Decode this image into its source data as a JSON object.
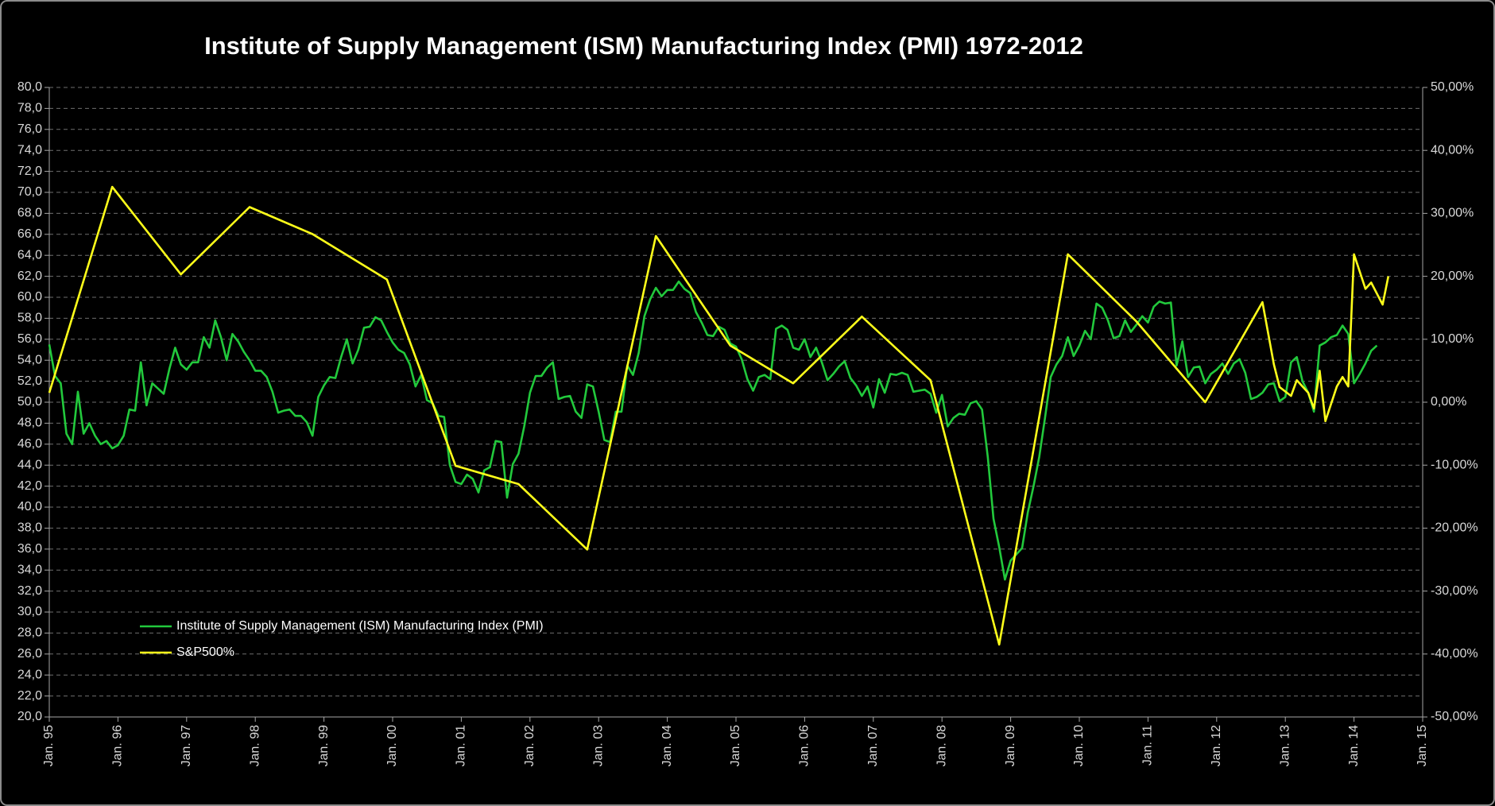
{
  "chart_data": {
    "type": "line",
    "title": "Institute of Supply Management (ISM) Manufacturing Index (PMI) 1972-2012",
    "xlim": [
      "1995-01",
      "2015-01"
    ],
    "xticks": [
      {
        "value": "1995-01",
        "label": "Jan. 95"
      },
      {
        "value": "1996-01",
        "label": "Jan. 96"
      },
      {
        "value": "1997-01",
        "label": "Jan. 97"
      },
      {
        "value": "1998-01",
        "label": "Jan. 98"
      },
      {
        "value": "1999-01",
        "label": "Jan. 99"
      },
      {
        "value": "2000-01",
        "label": "Jan. 00"
      },
      {
        "value": "2001-01",
        "label": "Jan. 01"
      },
      {
        "value": "2002-01",
        "label": "Jan. 02"
      },
      {
        "value": "2003-01",
        "label": "Jan. 03"
      },
      {
        "value": "2004-01",
        "label": "Jan. 04"
      },
      {
        "value": "2005-01",
        "label": "Jan. 05"
      },
      {
        "value": "2006-01",
        "label": "Jan. 06"
      },
      {
        "value": "2007-01",
        "label": "Jan. 07"
      },
      {
        "value": "2008-01",
        "label": "Jan. 08"
      },
      {
        "value": "2009-01",
        "label": "Jan. 09"
      },
      {
        "value": "2010-01",
        "label": "Jan. 10"
      },
      {
        "value": "2011-01",
        "label": "Jan. 11"
      },
      {
        "value": "2012-01",
        "label": "Jan. 12"
      },
      {
        "value": "2013-01",
        "label": "Jan. 13"
      },
      {
        "value": "2014-01",
        "label": "Jan. 14"
      },
      {
        "value": "2015-01",
        "label": "Jan. 15"
      }
    ],
    "ylim": [
      20,
      80
    ],
    "yticks": [
      {
        "value": 20,
        "label": "20,0"
      },
      {
        "value": 22,
        "label": "22,0"
      },
      {
        "value": 24,
        "label": "24,0"
      },
      {
        "value": 26,
        "label": "26,0"
      },
      {
        "value": 28,
        "label": "28,0"
      },
      {
        "value": 30,
        "label": "30,0"
      },
      {
        "value": 32,
        "label": "32,0"
      },
      {
        "value": 34,
        "label": "34,0"
      },
      {
        "value": 36,
        "label": "36,0"
      },
      {
        "value": 38,
        "label": "38,0"
      },
      {
        "value": 40,
        "label": "40,0"
      },
      {
        "value": 42,
        "label": "42,0"
      },
      {
        "value": 44,
        "label": "44,0"
      },
      {
        "value": 46,
        "label": "46,0"
      },
      {
        "value": 48,
        "label": "48,0"
      },
      {
        "value": 50,
        "label": "50,0"
      },
      {
        "value": 52,
        "label": "52,0"
      },
      {
        "value": 54,
        "label": "54,0"
      },
      {
        "value": 56,
        "label": "56,0"
      },
      {
        "value": 58,
        "label": "58,0"
      },
      {
        "value": 60,
        "label": "60,0"
      },
      {
        "value": 62,
        "label": "62,0"
      },
      {
        "value": 64,
        "label": "64,0"
      },
      {
        "value": 66,
        "label": "66,0"
      },
      {
        "value": 68,
        "label": "68,0"
      },
      {
        "value": 70,
        "label": "70,0"
      },
      {
        "value": 72,
        "label": "72,0"
      },
      {
        "value": 74,
        "label": "74,0"
      },
      {
        "value": 76,
        "label": "76,0"
      },
      {
        "value": 78,
        "label": "78,0"
      },
      {
        "value": 80,
        "label": "80,0"
      }
    ],
    "y2lim": [
      -50,
      50
    ],
    "y2ticks": [
      {
        "value": -50,
        "label": "-50,00%"
      },
      {
        "value": -40,
        "label": "-40,00%"
      },
      {
        "value": -30,
        "label": "-30,00%"
      },
      {
        "value": -20,
        "label": "-20,00%"
      },
      {
        "value": -10,
        "label": "-10,00%"
      },
      {
        "value": 0,
        "label": "0,00%"
      },
      {
        "value": 10,
        "label": "10,00%"
      },
      {
        "value": 20,
        "label": "20,00%"
      },
      {
        "value": 30,
        "label": "30,00%"
      },
      {
        "value": 40,
        "label": "40,00%"
      },
      {
        "value": 50,
        "label": "50,00%"
      }
    ],
    "grid": true,
    "legend": "lower left",
    "series": [
      {
        "name": "Institute of Supply Management (ISM) Manufacturing Index (PMI)",
        "color": "#22c93c",
        "x": [
          "1995-01",
          "1995-02",
          "1995-03",
          "1995-04",
          "1995-05",
          "1995-06",
          "1995-07",
          "1995-08",
          "1995-09",
          "1995-10",
          "1995-11",
          "1995-12",
          "1996-01",
          "1996-02",
          "1996-03",
          "1996-04",
          "1996-05",
          "1996-06",
          "1996-07",
          "1996-08",
          "1996-09",
          "1996-10",
          "1996-11",
          "1996-12",
          "1997-01",
          "1997-02",
          "1997-03",
          "1997-04",
          "1997-05",
          "1997-06",
          "1997-07",
          "1997-08",
          "1997-09",
          "1997-10",
          "1997-11",
          "1997-12",
          "1998-01",
          "1998-02",
          "1998-03",
          "1998-04",
          "1998-05",
          "1998-06",
          "1998-07",
          "1998-08",
          "1998-09",
          "1998-10",
          "1998-11",
          "1998-12",
          "1999-01",
          "1999-02",
          "1999-03",
          "1999-04",
          "1999-05",
          "1999-06",
          "1999-07",
          "1999-08",
          "1999-09",
          "1999-10",
          "1999-11",
          "1999-12",
          "2000-01",
          "2000-02",
          "2000-03",
          "2000-04",
          "2000-05",
          "2000-06",
          "2000-07",
          "2000-08",
          "2000-09",
          "2000-10",
          "2000-11",
          "2000-12",
          "2001-01",
          "2001-02",
          "2001-03",
          "2001-04",
          "2001-05",
          "2001-06",
          "2001-07",
          "2001-08",
          "2001-09",
          "2001-10",
          "2001-11",
          "2001-12",
          "2002-01",
          "2002-02",
          "2002-03",
          "2002-04",
          "2002-05",
          "2002-06",
          "2002-07",
          "2002-08",
          "2002-09",
          "2002-10",
          "2002-11",
          "2002-12",
          "2003-01",
          "2003-02",
          "2003-03",
          "2003-04",
          "2003-05",
          "2003-06",
          "2003-07",
          "2003-08",
          "2003-09",
          "2003-10",
          "2003-11",
          "2003-12",
          "2004-01",
          "2004-02",
          "2004-03",
          "2004-04",
          "2004-05",
          "2004-06",
          "2004-07",
          "2004-08",
          "2004-09",
          "2004-10",
          "2004-11",
          "2004-12",
          "2005-01",
          "2005-02",
          "2005-03",
          "2005-04",
          "2005-05",
          "2005-06",
          "2005-07",
          "2005-08",
          "2005-09",
          "2005-10",
          "2005-11",
          "2005-12",
          "2006-01",
          "2006-02",
          "2006-03",
          "2006-04",
          "2006-05",
          "2006-06",
          "2006-07",
          "2006-08",
          "2006-09",
          "2006-10",
          "2006-11",
          "2006-12",
          "2007-01",
          "2007-02",
          "2007-03",
          "2007-04",
          "2007-05",
          "2007-06",
          "2007-07",
          "2007-08",
          "2007-09",
          "2007-10",
          "2007-11",
          "2007-12",
          "2008-01",
          "2008-02",
          "2008-03",
          "2008-04",
          "2008-05",
          "2008-06",
          "2008-07",
          "2008-08",
          "2008-09",
          "2008-10",
          "2008-11",
          "2008-12",
          "2009-01",
          "2009-02",
          "2009-03",
          "2009-04",
          "2009-05",
          "2009-06",
          "2009-07",
          "2009-08",
          "2009-09",
          "2009-10",
          "2009-11",
          "2009-12",
          "2010-01",
          "2010-02",
          "2010-03",
          "2010-04",
          "2010-05",
          "2010-06",
          "2010-07",
          "2010-08",
          "2010-09",
          "2010-10",
          "2010-11",
          "2010-12",
          "2011-01",
          "2011-02",
          "2011-03",
          "2011-04",
          "2011-05",
          "2011-06",
          "2011-07",
          "2011-08",
          "2011-09",
          "2011-10",
          "2011-11",
          "2011-12",
          "2012-01",
          "2012-02",
          "2012-03",
          "2012-04",
          "2012-05",
          "2012-06",
          "2012-07",
          "2012-08",
          "2012-09",
          "2012-10",
          "2012-11",
          "2012-12",
          "2013-01",
          "2013-02",
          "2013-03",
          "2013-04",
          "2013-05",
          "2013-06",
          "2013-07",
          "2013-08",
          "2013-09",
          "2013-10",
          "2013-11",
          "2013-12",
          "2014-01",
          "2014-02",
          "2014-03",
          "2014-04",
          "2014-05"
        ],
        "values": [
          55.5,
          52.5,
          51.8,
          47,
          46,
          51,
          47,
          48,
          46.8,
          46,
          46.3,
          45.6,
          45.9,
          46.8,
          49.3,
          49.2,
          53.8,
          49.7,
          51.8,
          51.3,
          50.8,
          53.2,
          55.2,
          53.6,
          53.1,
          53.8,
          53.8,
          56.2,
          55.2,
          57.8,
          56.2,
          54,
          56.5,
          55.8,
          54.8,
          54,
          53,
          53,
          52.4,
          51,
          49,
          49.2,
          49.3,
          48.7,
          48.7,
          48.1,
          46.8,
          50.5,
          51.6,
          52.4,
          52.3,
          54.3,
          56,
          53.7,
          55,
          57.1,
          57.2,
          58.1,
          57.8,
          56.7,
          55.7,
          55,
          54.7,
          53.6,
          51.5,
          52.6,
          50.2,
          49.9,
          48.7,
          48.6,
          44,
          42.4,
          42.2,
          43.1,
          42.7,
          41.4,
          43.5,
          43.8,
          46.3,
          46.2,
          40.9,
          44.1,
          45.1,
          47.7,
          50.9,
          52.5,
          52.5,
          53.3,
          53.8,
          50.3,
          50.5,
          50.6,
          49.1,
          48.5,
          51.7,
          51.5,
          49.1,
          46.4,
          46.2,
          49.1,
          49.1,
          53.5,
          52.6,
          54.7,
          58.2,
          59.8,
          60.9,
          60.1,
          60.7,
          60.7,
          61.5,
          60.8,
          60.4,
          58.6,
          57.6,
          56.4,
          56.3,
          57.2,
          56.9,
          55.6,
          55.3,
          54.1,
          52.2,
          51.1,
          52.4,
          52.6,
          52.2,
          57,
          57.3,
          56.9,
          55.2,
          55,
          56,
          54.3,
          55.2,
          53.8,
          52.1,
          52.7,
          53.4,
          53.9,
          52.3,
          51.6,
          50.6,
          51.5,
          49.5,
          52.2,
          50.9,
          52.7,
          52.6,
          52.8,
          52.6,
          51,
          51.1,
          51.2,
          50.8,
          49,
          50.7,
          47.7,
          48.5,
          48.9,
          48.8,
          49.9,
          50.1,
          49.3,
          44.8,
          38.9,
          36.2,
          33.1,
          34.9,
          35.5,
          36.1,
          39.5,
          42,
          44.8,
          48.5,
          52.4,
          53.6,
          54.4,
          56.2,
          54.4,
          55.4,
          56.8,
          56,
          59.4,
          59,
          57.8,
          56.1,
          56.3,
          57.8,
          56.7,
          57.4,
          58.2,
          57.6,
          59.1,
          59.6,
          59.4,
          59.5,
          53.5,
          55.8,
          52.4,
          53.3,
          53.4,
          51.8,
          52.7,
          53.1,
          53.7,
          52.7,
          53.7,
          54.1,
          52.8,
          50.3,
          50.5,
          50.9,
          51.7,
          51.8,
          50.1,
          50.5,
          53.8,
          54.3,
          52,
          50.9,
          49.1,
          55.4,
          55.7,
          56.2,
          56.4,
          57.3,
          56.5,
          51.8,
          52.7,
          53.7,
          54.9,
          55.4
        ]
      },
      {
        "name": "S&P500%",
        "color": "#ffff1a",
        "axis": "y2",
        "x": [
          "1995-01",
          "1995-12",
          "1996-12",
          "1997-12",
          "1998-11",
          "1999-12",
          "2000-12",
          "2001-11",
          "2002-11",
          "2003-11",
          "2004-12",
          "2005-11",
          "2006-11",
          "2007-11",
          "2008-11",
          "2009-11",
          "2010-11",
          "2011-11",
          "2012-09",
          "2012-11",
          "2012-12",
          "2013-02",
          "2013-03",
          "2013-04",
          "2013-05",
          "2013-06",
          "2013-07",
          "2013-08",
          "2013-10",
          "2013-11",
          "2013-12",
          "2014-01",
          "2014-03",
          "2014-04",
          "2014-06",
          "2014-07"
        ],
        "values": [
          1.5,
          34.2,
          20.3,
          31,
          26.7,
          19.5,
          -10.1,
          -13,
          -23.4,
          26.4,
          9,
          3,
          13.6,
          3.5,
          -38.5,
          23.5,
          12.8,
          0,
          15.9,
          6,
          2.4,
          1,
          3.5,
          2.5,
          1.5,
          -1,
          5,
          -3,
          2.5,
          4,
          2.5,
          23.5,
          18,
          19,
          15.5,
          20
        ]
      }
    ]
  }
}
